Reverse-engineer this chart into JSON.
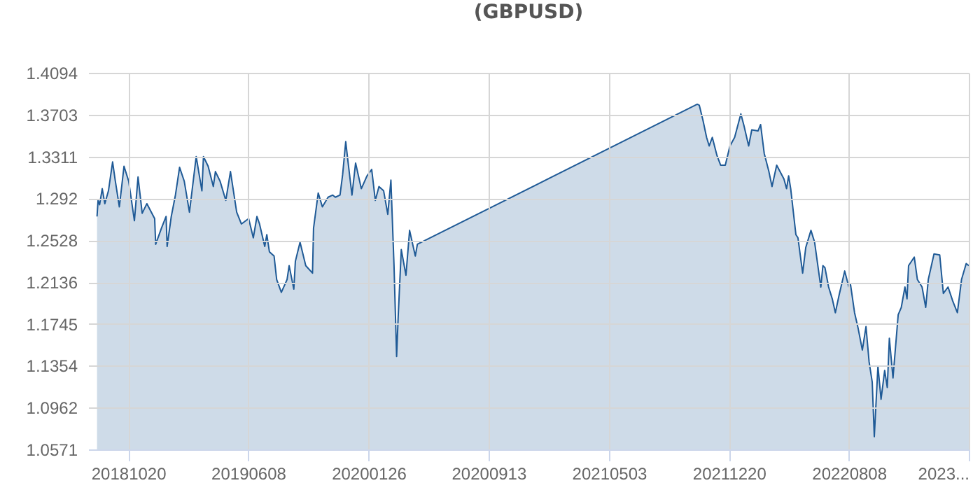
{
  "chart_data": {
    "type": "area",
    "title": "(GBPUSD)",
    "x": [
      "2018-08-21",
      "2018-08-23",
      "2018-08-26",
      "2018-08-31",
      "2018-09-05",
      "2018-09-12",
      "2018-09-20",
      "2018-09-25",
      "2018-10-03",
      "2018-10-12",
      "2018-10-21",
      "2018-11-01",
      "2018-11-08",
      "2018-11-16",
      "2018-11-25",
      "2018-12-10",
      "2018-12-12",
      "2018-12-23",
      "2019-01-01",
      "2019-01-03",
      "2019-01-11",
      "2019-01-19",
      "2019-01-27",
      "2019-02-05",
      "2019-02-15",
      "2019-02-28",
      "2019-03-11",
      "2019-03-14",
      "2019-03-23",
      "2019-04-02",
      "2019-04-06",
      "2019-04-15",
      "2019-04-26",
      "2019-05-05",
      "2019-05-17",
      "2019-05-26",
      "2019-06-09",
      "2019-06-18",
      "2019-06-25",
      "2019-06-30",
      "2019-07-10",
      "2019-07-14",
      "2019-07-19",
      "2019-07-28",
      "2019-08-02",
      "2019-08-11",
      "2019-08-22",
      "2019-08-26",
      "2019-09-04",
      "2019-09-07",
      "2019-09-16",
      "2019-09-27",
      "2019-10-10",
      "2019-10-12",
      "2019-10-21",
      "2019-10-29",
      "2019-11-09",
      "2019-11-18",
      "2019-11-23",
      "2019-12-02",
      "2019-12-07",
      "2019-12-13",
      "2019-12-16",
      "2019-12-25",
      "2020-01-01",
      "2020-01-12",
      "2020-01-23",
      "2020-02-01",
      "2020-02-08",
      "2020-02-15",
      "2020-02-24",
      "2020-03-03",
      "2020-03-09",
      "2020-03-15",
      "2020-03-20",
      "2020-03-23",
      "2020-03-29",
      "2020-04-07",
      "2020-04-14",
      "2020-04-25",
      "2020-04-29",
      "2021-10-20",
      "2021-10-24",
      "2021-10-31",
      "2021-11-07",
      "2021-11-12",
      "2021-11-18",
      "2021-11-27",
      "2021-12-04",
      "2021-12-13",
      "2021-12-22",
      "2021-12-31",
      "2022-01-12",
      "2022-01-18",
      "2022-01-27",
      "2022-02-02",
      "2022-02-14",
      "2022-02-19",
      "2022-02-26",
      "2022-03-07",
      "2022-03-13",
      "2022-03-22",
      "2022-04-05",
      "2022-04-10",
      "2022-04-14",
      "2022-04-18",
      "2022-04-28",
      "2022-05-02",
      "2022-05-11",
      "2022-05-17",
      "2022-05-27",
      "2022-06-03",
      "2022-06-15",
      "2022-06-19",
      "2022-06-23",
      "2022-06-30",
      "2022-07-07",
      "2022-07-13",
      "2022-07-20",
      "2022-07-31",
      "2022-08-08",
      "2022-08-11",
      "2022-08-19",
      "2022-08-26",
      "2022-09-03",
      "2022-09-10",
      "2022-09-16",
      "2022-09-22",
      "2022-09-26",
      "2022-10-03",
      "2022-10-09",
      "2022-10-16",
      "2022-10-21",
      "2022-10-25",
      "2022-11-01",
      "2022-11-11",
      "2022-11-17",
      "2022-11-24",
      "2022-11-28",
      "2022-12-01",
      "2022-12-12",
      "2022-12-18",
      "2022-12-27",
      "2023-01-03",
      "2023-01-08",
      "2023-01-19",
      "2023-01-30",
      "2023-02-06",
      "2023-02-15",
      "2023-02-24",
      "2023-03-05",
      "2023-03-13",
      "2023-03-22",
      "2023-03-27"
    ],
    "series": [
      {
        "color": "#1f5a96",
        "values": [
          1.275,
          1.29,
          1.286,
          1.301,
          1.287,
          1.299,
          1.326,
          1.309,
          1.284,
          1.322,
          1.308,
          1.271,
          1.312,
          1.278,
          1.287,
          1.273,
          1.249,
          1.264,
          1.275,
          1.247,
          1.275,
          1.295,
          1.321,
          1.308,
          1.279,
          1.331,
          1.299,
          1.331,
          1.322,
          1.303,
          1.317,
          1.308,
          1.29,
          1.317,
          1.279,
          1.268,
          1.273,
          1.255,
          1.275,
          1.268,
          1.247,
          1.258,
          1.242,
          1.238,
          1.216,
          1.204,
          1.216,
          1.229,
          1.207,
          1.233,
          1.251,
          1.229,
          1.222,
          1.264,
          1.297,
          1.284,
          1.293,
          1.295,
          1.293,
          1.295,
          1.314,
          1.345,
          1.332,
          1.295,
          1.325,
          1.301,
          1.313,
          1.319,
          1.29,
          1.303,
          1.299,
          1.277,
          1.309,
          1.229,
          1.144,
          1.181,
          1.244,
          1.22,
          1.262,
          1.238,
          1.249,
          1.38,
          1.379,
          1.365,
          1.349,
          1.341,
          1.349,
          1.332,
          1.323,
          1.323,
          1.341,
          1.349,
          1.371,
          1.36,
          1.341,
          1.356,
          1.355,
          1.361,
          1.334,
          1.317,
          1.303,
          1.323,
          1.31,
          1.301,
          1.313,
          1.301,
          1.258,
          1.255,
          1.222,
          1.246,
          1.262,
          1.251,
          1.209,
          1.229,
          1.227,
          1.209,
          1.198,
          1.185,
          1.201,
          1.224,
          1.209,
          1.212,
          1.185,
          1.17,
          1.15,
          1.172,
          1.139,
          1.12,
          1.069,
          1.135,
          1.104,
          1.131,
          1.115,
          1.161,
          1.124,
          1.183,
          1.19,
          1.209,
          1.198,
          1.229,
          1.237,
          1.216,
          1.209,
          1.19,
          1.216,
          1.24,
          1.239,
          1.203,
          1.209,
          1.196,
          1.185,
          1.216,
          1.231,
          1.229
        ]
      }
    ],
    "xlim": [
      "2018-08-04",
      "2023-03-27"
    ],
    "xticks": [
      {
        "value": "2018-10-20",
        "label": "20181020"
      },
      {
        "value": "2019-06-08",
        "label": "20190608"
      },
      {
        "value": "2020-01-26",
        "label": "20200126"
      },
      {
        "value": "2020-09-13",
        "label": "20200913"
      },
      {
        "value": "2021-05-03",
        "label": "20210503"
      },
      {
        "value": "2021-12-20",
        "label": "20211220"
      },
      {
        "value": "2022-08-08",
        "label": "20220808"
      },
      {
        "value": "2023-03-27",
        "label": "2023..."
      }
    ],
    "ylim": [
      1.0571,
      1.4094
    ],
    "yticks": [
      1.0571,
      1.0962,
      1.1354,
      1.1745,
      1.2136,
      1.2528,
      1.292,
      1.3311,
      1.3703,
      1.4094
    ],
    "grid": true
  }
}
